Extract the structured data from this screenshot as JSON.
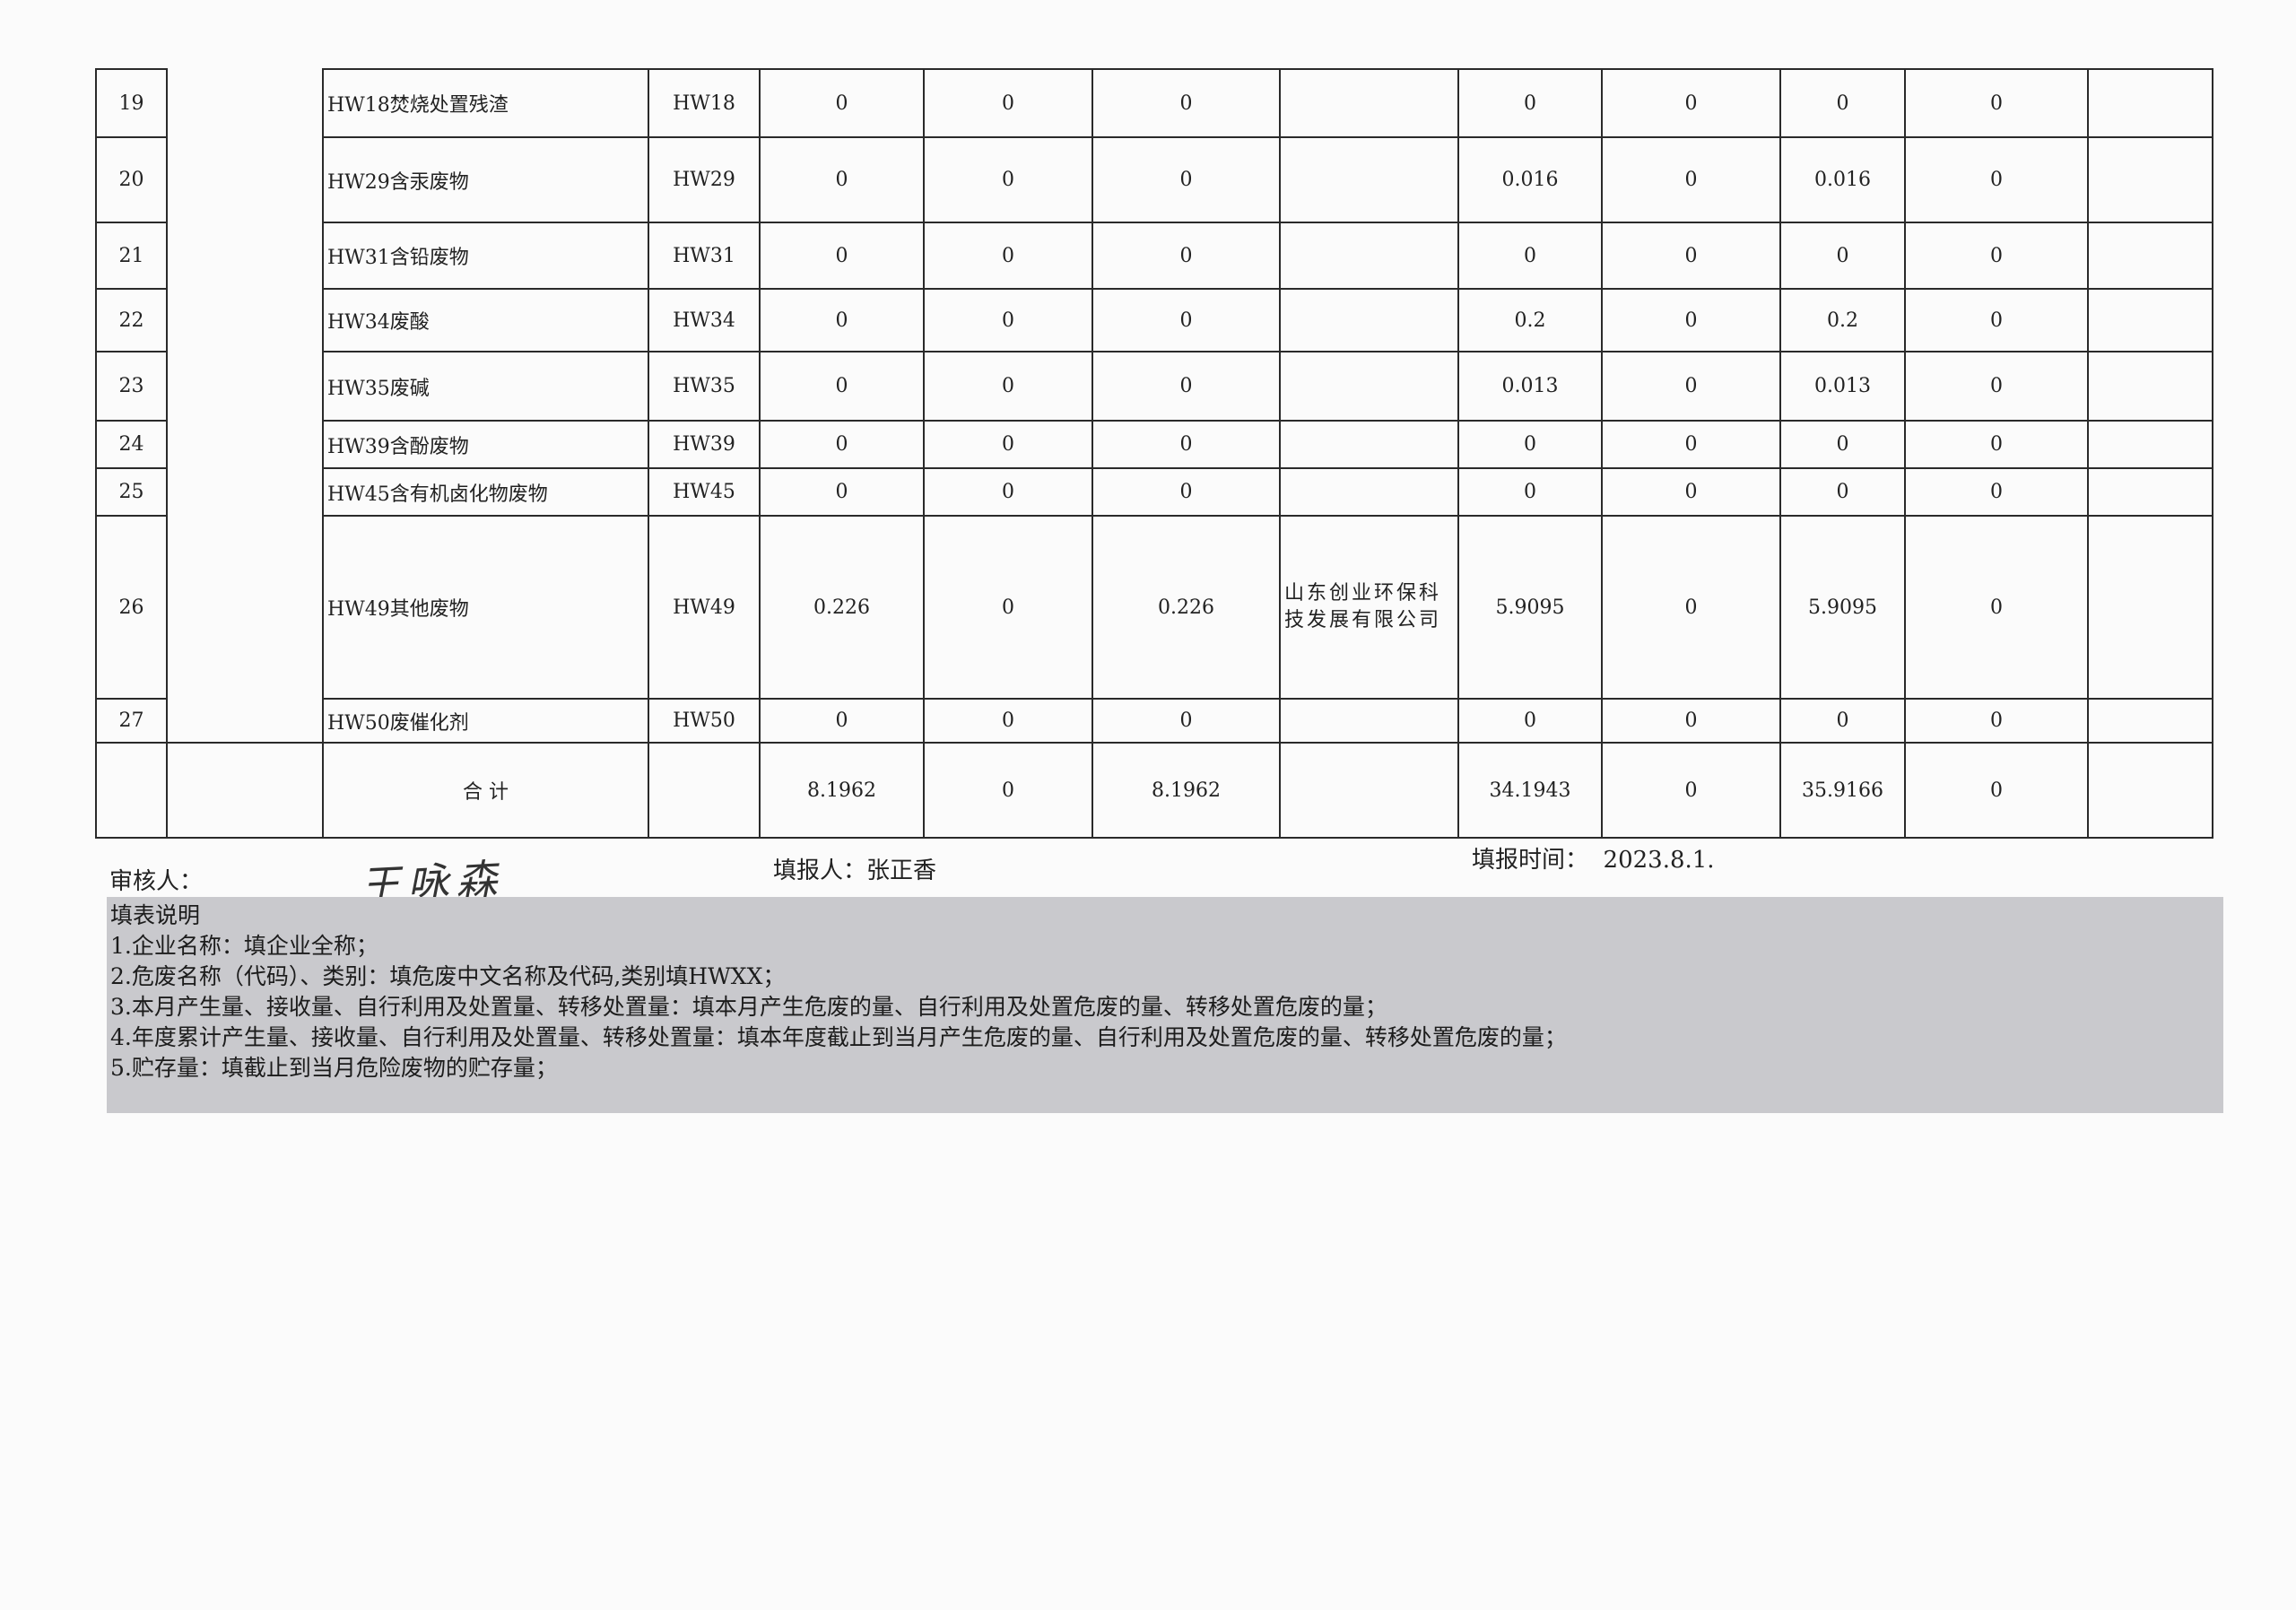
{
  "table": {
    "rows": [
      {
        "no": "19",
        "name": "HW18焚烧处置残渣",
        "code": "HW18",
        "c1": "0",
        "c2": "0",
        "c3": "0",
        "company": "",
        "c5": "0",
        "c6": "0",
        "c7": "0",
        "c8": "0",
        "c9": ""
      },
      {
        "no": "20",
        "name": "HW29含汞废物",
        "code": "HW29",
        "c1": "0",
        "c2": "0",
        "c3": "0",
        "company": "",
        "c5": "0.016",
        "c6": "0",
        "c7": "0.016",
        "c8": "0",
        "c9": ""
      },
      {
        "no": "21",
        "name": "HW31含铅废物",
        "code": "HW31",
        "c1": "0",
        "c2": "0",
        "c3": "0",
        "company": "",
        "c5": "0",
        "c6": "0",
        "c7": "0",
        "c8": "0",
        "c9": ""
      },
      {
        "no": "22",
        "name": "HW34废酸",
        "code": "HW34",
        "c1": "0",
        "c2": "0",
        "c3": "0",
        "company": "",
        "c5": "0.2",
        "c6": "0",
        "c7": "0.2",
        "c8": "0",
        "c9": ""
      },
      {
        "no": "23",
        "name": "HW35废碱",
        "code": "HW35",
        "c1": "0",
        "c2": "0",
        "c3": "0",
        "company": "",
        "c5": "0.013",
        "c6": "0",
        "c7": "0.013",
        "c8": "0",
        "c9": ""
      },
      {
        "no": "24",
        "name": "HW39含酚废物",
        "code": "HW39",
        "c1": "0",
        "c2": "0",
        "c3": "0",
        "company": "",
        "c5": "0",
        "c6": "0",
        "c7": "0",
        "c8": "0",
        "c9": ""
      },
      {
        "no": "25",
        "name": "HW45含有机卤化物废物",
        "code": "HW45",
        "c1": "0",
        "c2": "0",
        "c3": "0",
        "company": "",
        "c5": "0",
        "c6": "0",
        "c7": "0",
        "c8": "0",
        "c9": ""
      },
      {
        "no": "26",
        "name": "HW49其他废物",
        "code": "HW49",
        "c1": "0.226",
        "c2": "0",
        "c3": "0.226",
        "company": "山东创业环保科技发展有限公司",
        "c5": "5.9095",
        "c6": "0",
        "c7": "5.9095",
        "c8": "0",
        "c9": ""
      },
      {
        "no": "27",
        "name": "HW50废催化剂",
        "code": "HW50",
        "c1": "0",
        "c2": "0",
        "c3": "0",
        "company": "",
        "c5": "0",
        "c6": "0",
        "c7": "0",
        "c8": "0",
        "c9": ""
      }
    ],
    "total": {
      "label": "合 计",
      "c1": "8.1962",
      "c2": "0",
      "c3": "8.1962",
      "c5": "34.1943",
      "c6": "0",
      "c7": "35.9166",
      "c8": "0"
    }
  },
  "footer": {
    "reviewer_label": "审核人：",
    "reviewer_signature": "王咏森",
    "filler": "填报人：张正香",
    "date": "填报时间：  2023.8.1."
  },
  "notes": [
    "填表说明",
    "1.企业名称：填企业全称；",
    "2.危废名称（代码）、类别：填危废中文名称及代码,类别填HWXX；",
    "3.本月产生量、接收量、自行利用及处置量、转移处置量：填本月产生危废的量、自行利用及处置危废的量、转移处置危废的量；",
    "4.年度累计产生量、接收量、自行利用及处置量、转移处置量：填本年度截止到当月产生危废的量、自行利用及处置危废的量、转移处置危废的量；",
    "5.贮存量：填截止到当月危险废物的贮存量；"
  ]
}
